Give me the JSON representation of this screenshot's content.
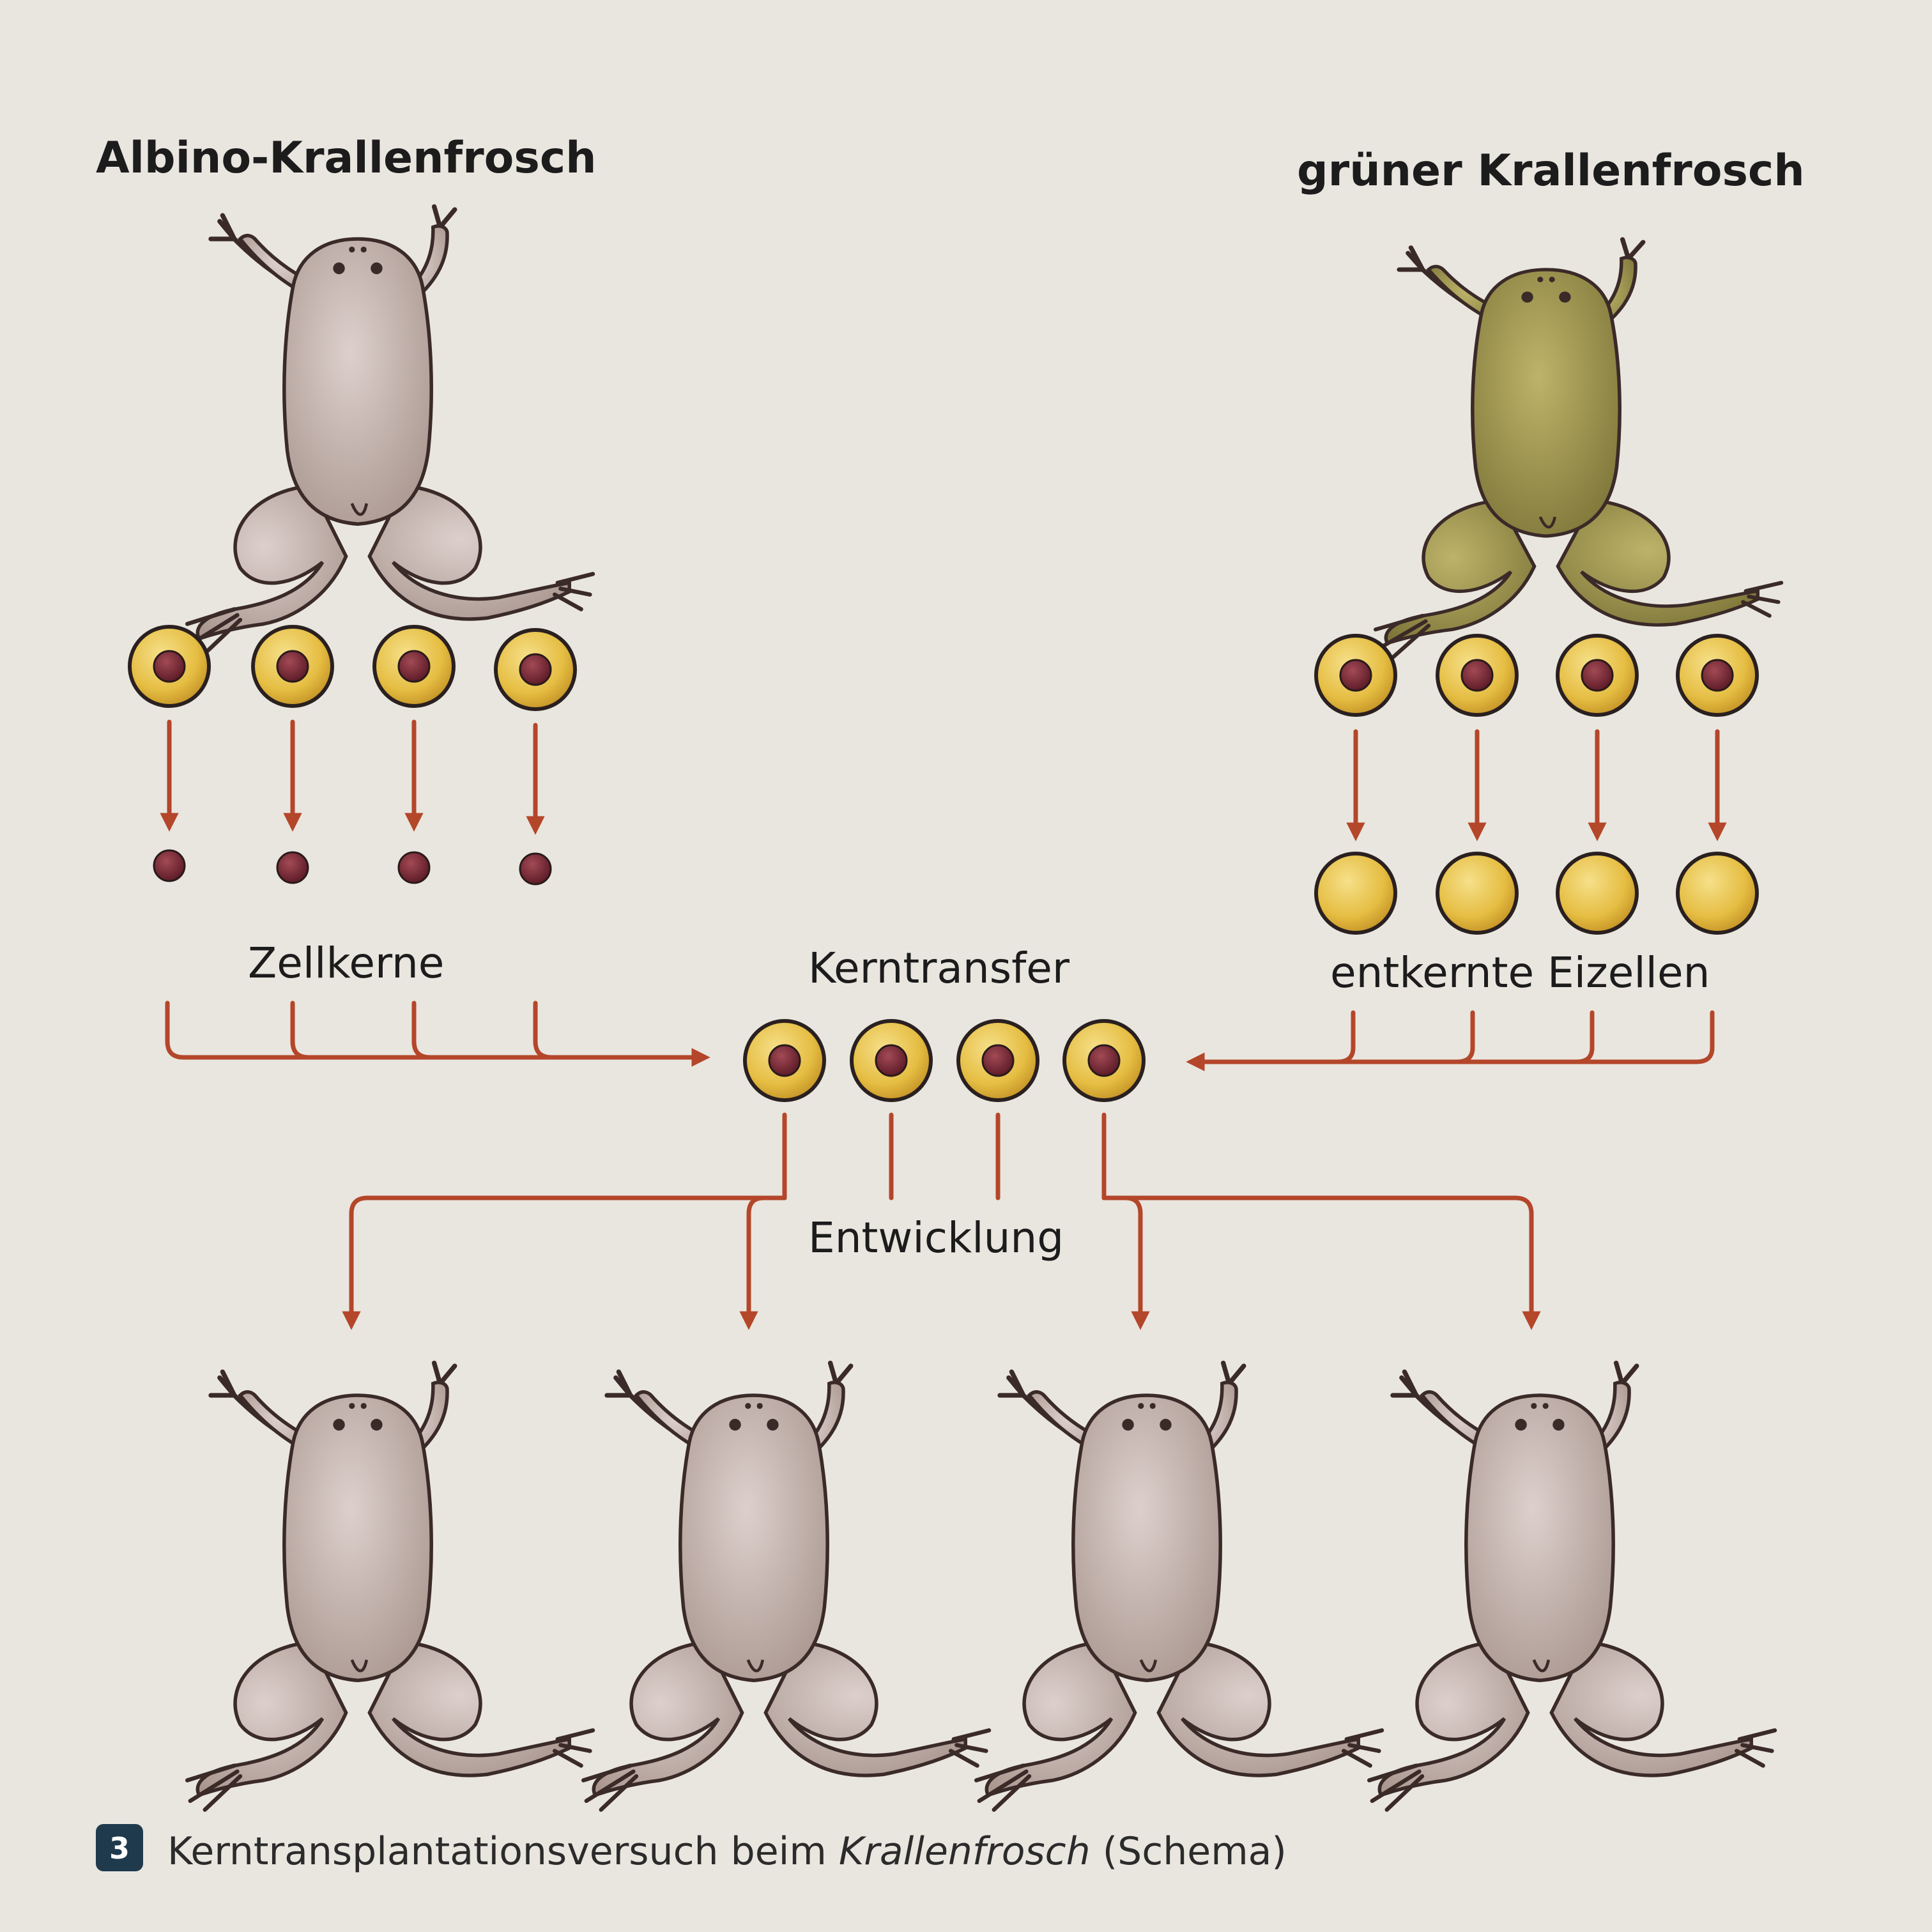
{
  "labels": {
    "albino_title": "Albino-Krallenfrosch",
    "green_title": "grüner Krallenfrosch",
    "nuclei": "Zellkerne",
    "transfer": "Kerntransfer",
    "enucleated": "entkernte Eizellen",
    "development": "Entwicklung"
  },
  "caption": {
    "number": "3",
    "text_before": "Kerntransplantationsversuch beim ",
    "text_italic": "Krallenfrosch",
    "text_after": " (Schema)"
  },
  "colors": {
    "arrow": "#b4462a",
    "cell_fill": "#e8c24a",
    "nucleus": "#7a2a36",
    "albino_skin": "#c9b9b4",
    "green_skin": "#a39a4e",
    "caption_badge": "#1f3a4d"
  }
}
